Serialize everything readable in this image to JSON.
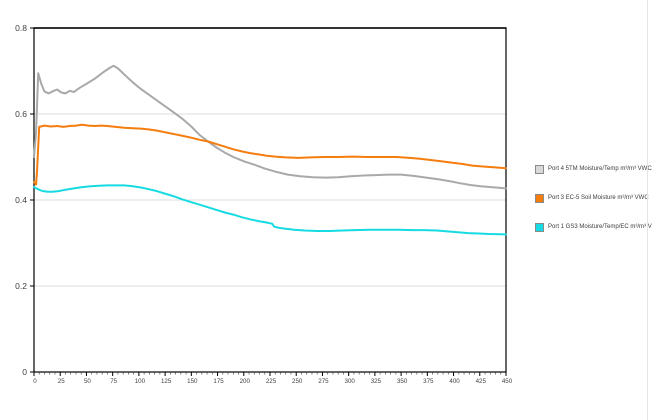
{
  "window": {
    "background": "#ffffff",
    "divider_color": "#e4e4e4"
  },
  "axes": {
    "y_tick_labels": [
      "0",
      "0.2",
      "0.4",
      "0.6",
      "0.8"
    ],
    "x_tick_labels": [
      "0",
      "25",
      "50",
      "75",
      "100",
      "125",
      "150",
      "175",
      "200",
      "225",
      "250",
      "275",
      "300",
      "325",
      "350",
      "375",
      "400",
      "425",
      "450"
    ],
    "tick_label_color": "#3f3f3f",
    "grid_color": "#dcdcdc",
    "border_color": "#000000"
  },
  "chart_data": {
    "type": "line",
    "title": "",
    "xlabel": "",
    "ylabel": "",
    "xlim": [
      0,
      450
    ],
    "ylim": [
      0,
      0.8
    ],
    "x_major_tick_step": 25,
    "x_minor_tick_step": 5,
    "y_tick_step": 0.2,
    "grid": "horizontal-only",
    "legend_position": "right",
    "series": [
      {
        "name": "Port 4 5TM Moisture/Temp m³/m³ VWC",
        "color": "#a9a9a9",
        "swatch_fill": "#d9d9d9",
        "points": [
          [
            0,
            0.5
          ],
          [
            2,
            0.56
          ],
          [
            4,
            0.695
          ],
          [
            7,
            0.67
          ],
          [
            10,
            0.652
          ],
          [
            14,
            0.648
          ],
          [
            18,
            0.653
          ],
          [
            22,
            0.657
          ],
          [
            26,
            0.65
          ],
          [
            30,
            0.648
          ],
          [
            34,
            0.654
          ],
          [
            38,
            0.651
          ],
          [
            43,
            0.66
          ],
          [
            50,
            0.67
          ],
          [
            58,
            0.682
          ],
          [
            66,
            0.697
          ],
          [
            72,
            0.707
          ],
          [
            76,
            0.712
          ],
          [
            80,
            0.706
          ],
          [
            86,
            0.692
          ],
          [
            94,
            0.674
          ],
          [
            102,
            0.658
          ],
          [
            110,
            0.644
          ],
          [
            118,
            0.63
          ],
          [
            126,
            0.616
          ],
          [
            134,
            0.602
          ],
          [
            142,
            0.588
          ],
          [
            150,
            0.571
          ],
          [
            158,
            0.551
          ],
          [
            166,
            0.536
          ],
          [
            174,
            0.522
          ],
          [
            182,
            0.51
          ],
          [
            190,
            0.5
          ],
          [
            200,
            0.49
          ],
          [
            210,
            0.482
          ],
          [
            220,
            0.473
          ],
          [
            230,
            0.466
          ],
          [
            242,
            0.459
          ],
          [
            254,
            0.455
          ],
          [
            266,
            0.453
          ],
          [
            278,
            0.452
          ],
          [
            290,
            0.453
          ],
          [
            302,
            0.455
          ],
          [
            314,
            0.457
          ],
          [
            326,
            0.458
          ],
          [
            338,
            0.459
          ],
          [
            350,
            0.459
          ],
          [
            362,
            0.456
          ],
          [
            374,
            0.452
          ],
          [
            386,
            0.448
          ],
          [
            396,
            0.444
          ],
          [
            406,
            0.439
          ],
          [
            416,
            0.435
          ],
          [
            426,
            0.432
          ],
          [
            436,
            0.43
          ],
          [
            450,
            0.427
          ]
        ]
      },
      {
        "name": "Port 3 EC-5 Soil Moisture m³/m³ VWC",
        "color": "#f57d0e",
        "swatch_fill": "#f57d0e",
        "points": [
          [
            0,
            0.442
          ],
          [
            2,
            0.436
          ],
          [
            3,
            0.47
          ],
          [
            5,
            0.57
          ],
          [
            10,
            0.573
          ],
          [
            16,
            0.571
          ],
          [
            22,
            0.572
          ],
          [
            28,
            0.57
          ],
          [
            34,
            0.572
          ],
          [
            40,
            0.573
          ],
          [
            46,
            0.575
          ],
          [
            52,
            0.573
          ],
          [
            58,
            0.572
          ],
          [
            64,
            0.573
          ],
          [
            70,
            0.572
          ],
          [
            78,
            0.57
          ],
          [
            86,
            0.568
          ],
          [
            94,
            0.567
          ],
          [
            102,
            0.566
          ],
          [
            110,
            0.564
          ],
          [
            118,
            0.561
          ],
          [
            126,
            0.557
          ],
          [
            134,
            0.553
          ],
          [
            142,
            0.549
          ],
          [
            150,
            0.545
          ],
          [
            158,
            0.54
          ],
          [
            166,
            0.536
          ],
          [
            174,
            0.53
          ],
          [
            182,
            0.524
          ],
          [
            190,
            0.518
          ],
          [
            198,
            0.513
          ],
          [
            206,
            0.509
          ],
          [
            214,
            0.506
          ],
          [
            222,
            0.503
          ],
          [
            230,
            0.501
          ],
          [
            240,
            0.499
          ],
          [
            252,
            0.498
          ],
          [
            264,
            0.499
          ],
          [
            276,
            0.5
          ],
          [
            290,
            0.5
          ],
          [
            304,
            0.501
          ],
          [
            318,
            0.5
          ],
          [
            332,
            0.5
          ],
          [
            346,
            0.5
          ],
          [
            358,
            0.498
          ],
          [
            368,
            0.496
          ],
          [
            378,
            0.493
          ],
          [
            388,
            0.49
          ],
          [
            398,
            0.487
          ],
          [
            408,
            0.484
          ],
          [
            418,
            0.48
          ],
          [
            428,
            0.478
          ],
          [
            438,
            0.476
          ],
          [
            450,
            0.474
          ]
        ]
      },
      {
        "name": "Port 1 GS3 Moisture/Temp/EC m³/m³ V",
        "color": "#17dbe3",
        "swatch_fill": "#17dbe3",
        "points": [
          [
            0,
            0.43
          ],
          [
            4,
            0.425
          ],
          [
            8,
            0.421
          ],
          [
            13,
            0.419
          ],
          [
            18,
            0.419
          ],
          [
            24,
            0.421
          ],
          [
            30,
            0.424
          ],
          [
            38,
            0.427
          ],
          [
            46,
            0.43
          ],
          [
            54,
            0.432
          ],
          [
            62,
            0.433
          ],
          [
            70,
            0.434
          ],
          [
            78,
            0.434
          ],
          [
            86,
            0.434
          ],
          [
            94,
            0.432
          ],
          [
            102,
            0.429
          ],
          [
            110,
            0.425
          ],
          [
            118,
            0.42
          ],
          [
            126,
            0.414
          ],
          [
            134,
            0.408
          ],
          [
            142,
            0.401
          ],
          [
            150,
            0.395
          ],
          [
            158,
            0.389
          ],
          [
            166,
            0.383
          ],
          [
            174,
            0.377
          ],
          [
            182,
            0.371
          ],
          [
            190,
            0.366
          ],
          [
            198,
            0.36
          ],
          [
            206,
            0.355
          ],
          [
            214,
            0.351
          ],
          [
            221,
            0.348
          ],
          [
            227,
            0.345
          ],
          [
            229,
            0.338
          ],
          [
            234,
            0.335
          ],
          [
            240,
            0.333
          ],
          [
            248,
            0.331
          ],
          [
            258,
            0.329
          ],
          [
            270,
            0.328
          ],
          [
            282,
            0.328
          ],
          [
            294,
            0.329
          ],
          [
            306,
            0.33
          ],
          [
            320,
            0.331
          ],
          [
            334,
            0.331
          ],
          [
            348,
            0.331
          ],
          [
            360,
            0.33
          ],
          [
            372,
            0.33
          ],
          [
            384,
            0.329
          ],
          [
            394,
            0.327
          ],
          [
            404,
            0.325
          ],
          [
            414,
            0.323
          ],
          [
            424,
            0.322
          ],
          [
            434,
            0.321
          ],
          [
            450,
            0.32
          ]
        ]
      }
    ]
  }
}
